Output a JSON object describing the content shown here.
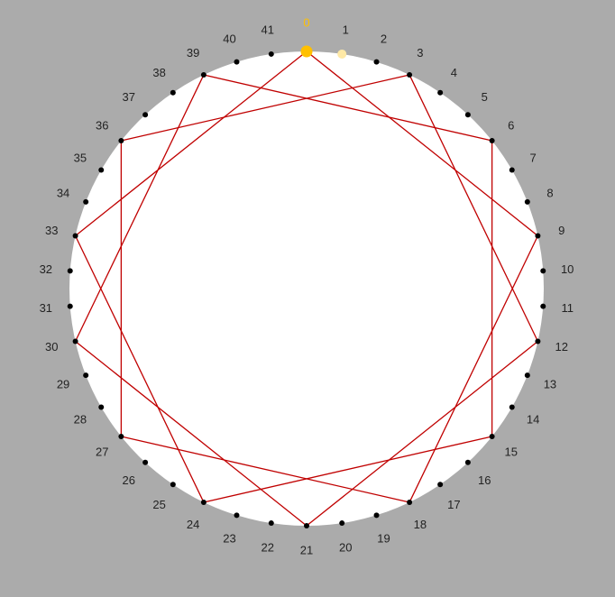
{
  "diagram": {
    "point_count": 42,
    "labels": [
      "0",
      "1",
      "2",
      "3",
      "4",
      "5",
      "6",
      "7",
      "8",
      "9",
      "10",
      "11",
      "12",
      "13",
      "14",
      "15",
      "16",
      "17",
      "18",
      "19",
      "20",
      "21",
      "22",
      "23",
      "24",
      "25",
      "26",
      "27",
      "28",
      "29",
      "30",
      "31",
      "32",
      "33",
      "34",
      "35",
      "36",
      "37",
      "38",
      "39",
      "40",
      "41"
    ],
    "path": [
      0,
      9,
      18,
      27,
      36,
      3,
      12,
      21,
      30,
      39,
      6,
      15,
      24,
      33,
      0
    ],
    "start_index": 0,
    "next_index": 1,
    "colors": {
      "background": "#ababab",
      "circle": "#ffffff",
      "point": "#000000",
      "label": "#222222",
      "line": "#c00000",
      "start_point": "#ffc000",
      "start_label": "#ffc000",
      "next_point": "#ffe9a6"
    }
  }
}
